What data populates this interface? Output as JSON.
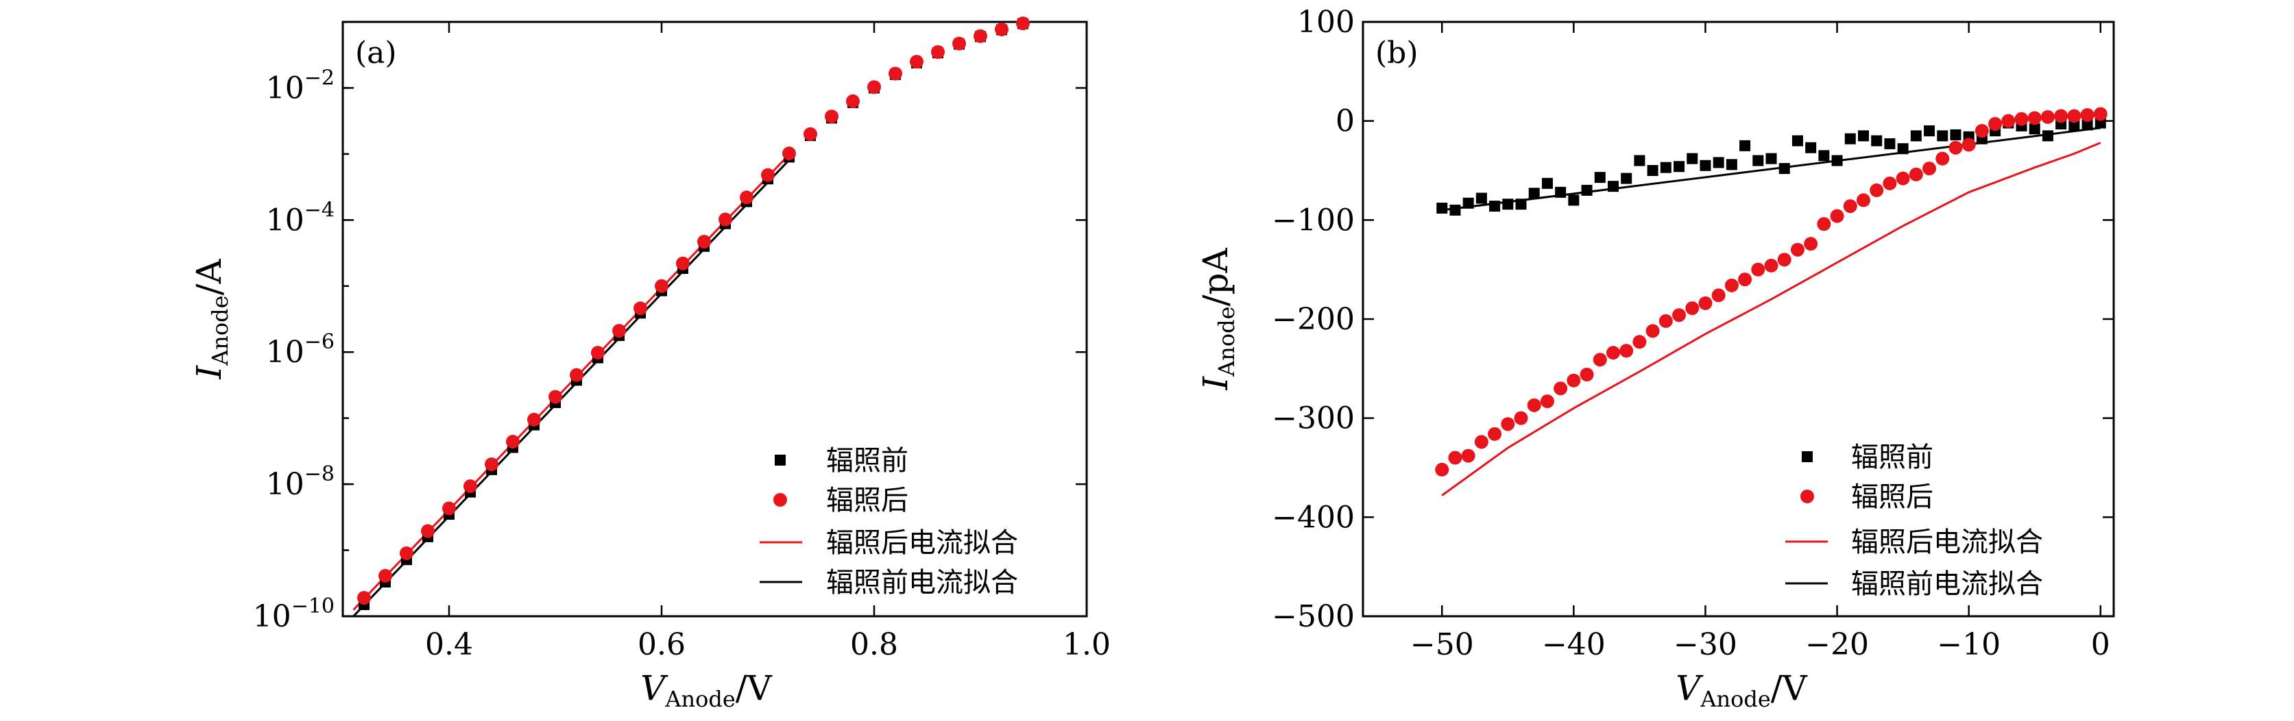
{
  "legend": {
    "before": "辐照前",
    "after": "辐照后",
    "fit_after": "辐照后电流拟合",
    "fit_before": "辐照前电流拟合"
  },
  "colors": {
    "before": "#000000",
    "after": "#e8141c"
  },
  "chart_data": [
    {
      "panel": "(a)",
      "type": "scatter",
      "xlabel": {
        "main": "V",
        "sub": "Anode",
        "unit": "/V"
      },
      "ylabel": {
        "main": "I",
        "sub": "Anode",
        "unit": "/A"
      },
      "xlim": [
        0.3,
        1.0
      ],
      "ylim": [
        1e-10,
        0.1
      ],
      "yscale": "log",
      "xticks": [
        "0.4",
        "0.6",
        "0.8",
        "1.0"
      ],
      "xtick_values": [
        0.4,
        0.6,
        0.8,
        1.0
      ],
      "yticks": [
        {
          "value": 1e-10,
          "base": "10",
          "exp": "−10"
        },
        {
          "value": 1e-08,
          "base": "10",
          "exp": "−8"
        },
        {
          "value": 1e-06,
          "base": "10",
          "exp": "−6"
        },
        {
          "value": 0.0001,
          "base": "10",
          "exp": "−4"
        },
        {
          "value": 0.01,
          "base": "10",
          "exp": "−2"
        }
      ],
      "legend_position": "lower-right",
      "series": [
        {
          "name": "辐照前",
          "marker": "square",
          "color": "#000000",
          "x": [
            0.32,
            0.34,
            0.36,
            0.38,
            0.4,
            0.42,
            0.44,
            0.46,
            0.48,
            0.5,
            0.52,
            0.54,
            0.56,
            0.58,
            0.6,
            0.62,
            0.64,
            0.66,
            0.68,
            0.7,
            0.72,
            0.74,
            0.76,
            0.78,
            0.8,
            0.82,
            0.84,
            0.86,
            0.88,
            0.9,
            0.92,
            0.94
          ],
          "y": [
            1.5e-10,
            3.3e-10,
            7.2e-10,
            1.6e-09,
            3.5e-09,
            7.6e-09,
            1.66e-08,
            3.6e-08,
            7.9e-08,
            1.72e-07,
            3.75e-07,
            8.2e-07,
            1.78e-06,
            3.9e-06,
            8.5e-06,
            1.85e-05,
            4e-05,
            8.8e-05,
            0.00019,
            0.00042,
            0.0009,
            0.0019,
            0.0035,
            0.006,
            0.01,
            0.016,
            0.024,
            0.034,
            0.046,
            0.06,
            0.076,
            0.094
          ]
        },
        {
          "name": "辐照后",
          "marker": "circle",
          "color": "#e8141c",
          "x": [
            0.32,
            0.34,
            0.36,
            0.38,
            0.4,
            0.42,
            0.44,
            0.46,
            0.48,
            0.5,
            0.52,
            0.54,
            0.56,
            0.58,
            0.6,
            0.62,
            0.64,
            0.66,
            0.68,
            0.7,
            0.72,
            0.74,
            0.76,
            0.78,
            0.8,
            0.82,
            0.84,
            0.86,
            0.88,
            0.9,
            0.92,
            0.94
          ],
          "y": [
            1.9e-10,
            4.1e-10,
            9e-10,
            1.95e-09,
            4.3e-09,
            9.3e-09,
            2e-08,
            4.4e-08,
            9.5e-08,
            2.1e-07,
            4.5e-07,
            9.8e-07,
            2.1e-06,
            4.6e-06,
            1e-05,
            2.2e-05,
            4.7e-05,
            0.000102,
            0.00022,
            0.00048,
            0.00102,
            0.002,
            0.0037,
            0.0063,
            0.0103,
            0.0165,
            0.025,
            0.035,
            0.047,
            0.061,
            0.077,
            0.095
          ]
        },
        {
          "name": "辐照后电流拟合",
          "kind": "line",
          "color": "#e8141c",
          "x": [
            0.31,
            0.72
          ],
          "y": [
            1.25e-10,
            0.00098
          ]
        },
        {
          "name": "辐照前电流拟合",
          "kind": "line",
          "color": "#000000",
          "x": [
            0.31,
            0.72
          ],
          "y": [
            1e-10,
            0.00081
          ]
        }
      ]
    },
    {
      "panel": "(b)",
      "type": "scatter",
      "xlabel": {
        "main": "V",
        "sub": "Anode",
        "unit": "/V"
      },
      "ylabel": {
        "main": "I",
        "sub": "Anode",
        "unit": "/pA"
      },
      "xlim": [
        -56,
        1
      ],
      "ylim": [
        -500,
        100
      ],
      "xticks": [
        {
          "value": -50,
          "label": "−50"
        },
        {
          "value": -40,
          "label": "−40"
        },
        {
          "value": -30,
          "label": "−30"
        },
        {
          "value": -20,
          "label": "−20"
        },
        {
          "value": -10,
          "label": "−10"
        },
        {
          "value": 0,
          "label": "0"
        }
      ],
      "yticks": [
        {
          "value": 100,
          "label": "100"
        },
        {
          "value": 0,
          "label": "0"
        },
        {
          "value": -100,
          "label": "−100"
        },
        {
          "value": -200,
          "label": "−200"
        },
        {
          "value": -300,
          "label": "−300"
        },
        {
          "value": -400,
          "label": "−400"
        },
        {
          "value": -500,
          "label": "−500"
        }
      ],
      "legend_position": "lower-right",
      "series": [
        {
          "name": "辐照前",
          "marker": "square",
          "color": "#000000",
          "x": [
            -50,
            -49,
            -48,
            -47,
            -46,
            -45,
            -44,
            -43,
            -42,
            -41,
            -40,
            -39,
            -38,
            -37,
            -36,
            -35,
            -34,
            -33,
            -32,
            -31,
            -30,
            -29,
            -28,
            -27,
            -26,
            -25,
            -24,
            -23,
            -22,
            -21,
            -20,
            -19,
            -18,
            -17,
            -16,
            -15,
            -14,
            -13,
            -12,
            -11,
            -10,
            -9,
            -8,
            -7,
            -6,
            -5,
            -4,
            -3,
            -2,
            -1,
            0
          ],
          "y": [
            -88,
            -90,
            -83,
            -78,
            -86,
            -84,
            -84,
            -73,
            -63,
            -72,
            -80,
            -70,
            -57,
            -66,
            -58,
            -40,
            -50,
            -47,
            -46,
            -38,
            -45,
            -42,
            -44,
            -25,
            -40,
            -38,
            -48,
            -20,
            -27,
            -35,
            -40,
            -18,
            -15,
            -20,
            -23,
            -28,
            -15,
            -10,
            -15,
            -14,
            -16,
            -18,
            -10,
            -2,
            -5,
            -8,
            -15,
            -3,
            -5,
            -4,
            -2
          ]
        },
        {
          "name": "辐照后",
          "marker": "circle",
          "color": "#e8141c",
          "x": [
            -50,
            -49,
            -48,
            -47,
            -46,
            -45,
            -44,
            -43,
            -42,
            -41,
            -40,
            -39,
            -38,
            -37,
            -36,
            -35,
            -34,
            -33,
            -32,
            -31,
            -30,
            -29,
            -28,
            -27,
            -26,
            -25,
            -24,
            -23,
            -22,
            -21,
            -20,
            -19,
            -18,
            -17,
            -16,
            -15,
            -14,
            -13,
            -12,
            -11,
            -10,
            -9,
            -8,
            -7,
            -6,
            -5,
            -4,
            -3,
            -2,
            -1,
            0
          ],
          "y": [
            -352,
            -340,
            -338,
            -324,
            -316,
            -306,
            -300,
            -287,
            -283,
            -270,
            -262,
            -256,
            -241,
            -234,
            -232,
            -223,
            -212,
            -202,
            -196,
            -189,
            -184,
            -176,
            -166,
            -160,
            -150,
            -146,
            -140,
            -130,
            -124,
            -104,
            -96,
            -86,
            -80,
            -70,
            -63,
            -58,
            -54,
            -48,
            -38,
            -27,
            -24,
            -10,
            -3,
            0,
            2,
            3,
            4,
            5,
            5,
            6,
            7
          ]
        },
        {
          "name": "辐照后电流拟合",
          "kind": "line",
          "color": "#e8141c",
          "x": [
            -50,
            -45,
            -40,
            -35,
            -30,
            -25,
            -20,
            -15,
            -10,
            -5,
            -2,
            0
          ],
          "y": [
            -378,
            -330,
            -290,
            -253,
            -215,
            -180,
            -143,
            -106,
            -72,
            -47,
            -33,
            -22
          ]
        },
        {
          "name": "辐照前电流拟合",
          "kind": "line",
          "color": "#000000",
          "x": [
            -50,
            0
          ],
          "y": [
            -90,
            -7
          ]
        }
      ]
    }
  ]
}
